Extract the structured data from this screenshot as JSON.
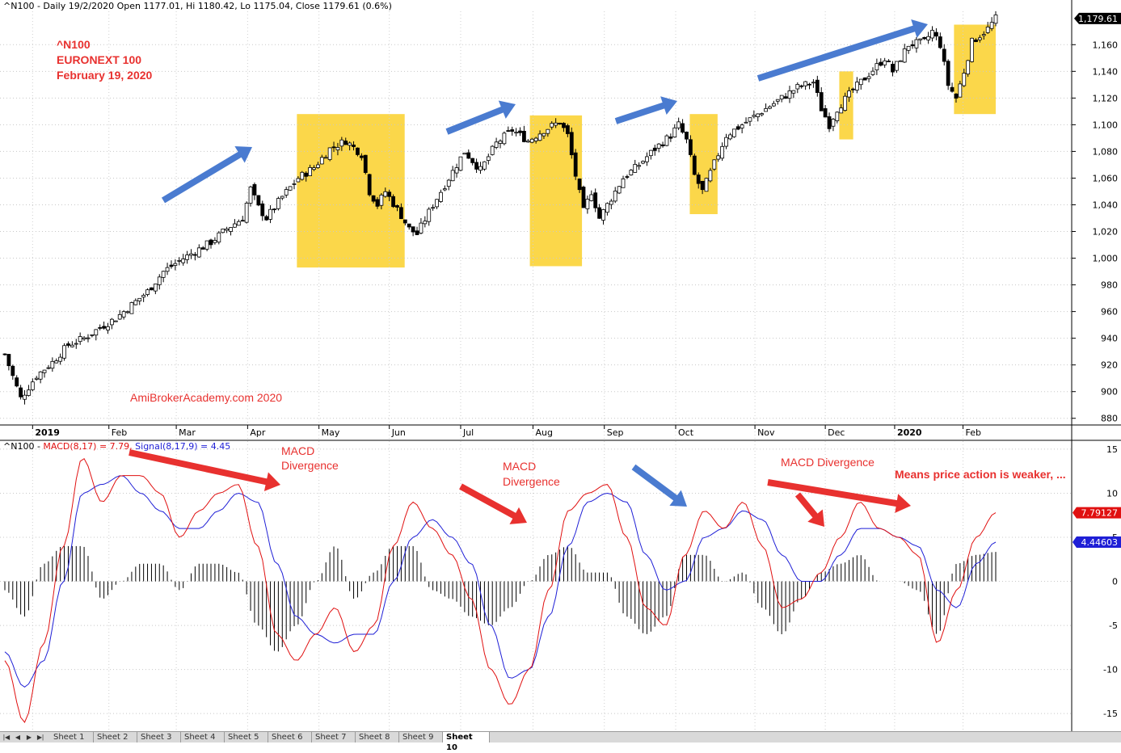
{
  "header": {
    "price_info": "^N100 - Daily 19/2/2020 Open 1177.01, Hi 1180.42, Lo 1175.04, Close 1179.61 (0.6%)",
    "macd_prefix": "^N100 - ",
    "macd_label": "MACD(8,17) = 7.79,",
    "signal_label": "Signal(8,17,9) = 4.45"
  },
  "annotations": {
    "ticker_line1": "^N100",
    "ticker_line2": "EURONEXT 100",
    "ticker_line3": "February 19, 2020",
    "watermark": "AmiBrokerAcademy.com   2020",
    "macd_div_1a": "MACD",
    "macd_div_1b": "Divergence",
    "macd_div_2a": "MACD",
    "macd_div_2b": "Divergence",
    "macd_div_3": "MACD Divergence",
    "note": "Means price action is weaker, ..."
  },
  "colors": {
    "accent_red": "#e8312f",
    "arrow_blue": "#4a7bd0",
    "highlight_yellow": "#fbd74a",
    "signal_blue": "#1f1fd6",
    "macd_red": "#e01010"
  },
  "tabs": [
    "Sheet 1",
    "Sheet 2",
    "Sheet 3",
    "Sheet 4",
    "Sheet 5",
    "Sheet 6",
    "Sheet 7",
    "Sheet 8",
    "Sheet 9",
    "Sheet 10"
  ],
  "active_tab": "Sheet 10",
  "chart_data": [
    {
      "type": "candlestick",
      "last_price_label": "1,179.61",
      "ylim": [
        875,
        1185
      ],
      "y_ticks": [
        "880",
        "900",
        "920",
        "940",
        "960",
        "980",
        "1,000",
        "1,020",
        "1,040",
        "1,060",
        "1,080",
        "1,100",
        "1,120",
        "1,140",
        "1,160"
      ],
      "x_ticks": [
        "2019",
        "Feb",
        "Mar",
        "Apr",
        "May",
        "Jun",
        "Jul",
        "Aug",
        "Sep",
        "Oct",
        "Nov",
        "Dec",
        "2020",
        "Feb"
      ],
      "close_path": [
        [
          0,
          928
        ],
        [
          4,
          895
        ],
        [
          8,
          912
        ],
        [
          12,
          922
        ],
        [
          16,
          935
        ],
        [
          20,
          940
        ],
        [
          24,
          948
        ],
        [
          28,
          955
        ],
        [
          32,
          965
        ],
        [
          36,
          975
        ],
        [
          40,
          990
        ],
        [
          44,
          998
        ],
        [
          48,
          1005
        ],
        [
          52,
          1012
        ],
        [
          56,
          1022
        ],
        [
          60,
          1030
        ],
        [
          62,
          1052
        ],
        [
          64,
          1038
        ],
        [
          66,
          1030
        ],
        [
          70,
          1046
        ],
        [
          74,
          1060
        ],
        [
          78,
          1068
        ],
        [
          82,
          1082
        ],
        [
          86,
          1088
        ],
        [
          90,
          1078
        ],
        [
          92,
          1050
        ],
        [
          94,
          1040
        ],
        [
          96,
          1050
        ],
        [
          100,
          1032
        ],
        [
          102,
          1022
        ],
        [
          104,
          1018
        ],
        [
          108,
          1040
        ],
        [
          112,
          1060
        ],
        [
          116,
          1080
        ],
        [
          120,
          1066
        ],
        [
          124,
          1086
        ],
        [
          128,
          1096
        ],
        [
          132,
          1088
        ],
        [
          136,
          1096
        ],
        [
          140,
          1102
        ],
        [
          142,
          1092
        ],
        [
          144,
          1062
        ],
        [
          146,
          1035
        ],
        [
          148,
          1050
        ],
        [
          150,
          1030
        ],
        [
          152,
          1040
        ],
        [
          156,
          1060
        ],
        [
          160,
          1070
        ],
        [
          164,
          1082
        ],
        [
          168,
          1092
        ],
        [
          170,
          1100
        ],
        [
          172,
          1088
        ],
        [
          174,
          1062
        ],
        [
          176,
          1050
        ],
        [
          178,
          1064
        ],
        [
          182,
          1092
        ],
        [
          186,
          1100
        ],
        [
          190,
          1108
        ],
        [
          192,
          1112
        ],
        [
          196,
          1120
        ],
        [
          200,
          1128
        ],
        [
          204,
          1132
        ],
        [
          206,
          1112
        ],
        [
          208,
          1100
        ],
        [
          210,
          1112
        ],
        [
          214,
          1126
        ],
        [
          218,
          1138
        ],
        [
          222,
          1150
        ],
        [
          224,
          1140
        ],
        [
          228,
          1160
        ],
        [
          232,
          1162
        ],
        [
          234,
          1170
        ],
        [
          236,
          1160
        ],
        [
          238,
          1130
        ],
        [
          240,
          1120
        ],
        [
          242,
          1140
        ],
        [
          244,
          1162
        ],
        [
          248,
          1172
        ],
        [
          250,
          1179.61
        ]
      ],
      "n_bars": 251,
      "highlight_regions": [
        {
          "x0": 84,
          "x1": 115,
          "y0": 993,
          "y1": 1108
        },
        {
          "x0": 151,
          "x1": 166,
          "y0": 994,
          "y1": 1107
        },
        {
          "x0": 197,
          "x1": 205,
          "y0": 1033,
          "y1": 1108
        },
        {
          "x0": 240,
          "x1": 244,
          "y0": 1089,
          "y1": 1140
        },
        {
          "x0": 273,
          "x1": 285,
          "y0": 1108,
          "y1": 1175
        }
      ]
    },
    {
      "type": "line",
      "ylim": [
        -17,
        16
      ],
      "y_ticks": [
        "15",
        "10",
        "5",
        "0",
        "-5",
        "-10",
        "-15"
      ],
      "macd_last_label": "7.79127",
      "signal_last_label": "4.44603",
      "series": [
        {
          "name": "MACD(8,17)",
          "values": [
            -9,
            -16,
            -7,
            4,
            14,
            9,
            12,
            12,
            10,
            5,
            8,
            10,
            11,
            4,
            -6,
            -9,
            -6,
            -3,
            -8,
            -5,
            4,
            9,
            6,
            3,
            -2,
            -10,
            -14,
            -10,
            -1,
            8,
            10,
            11,
            5,
            -3,
            -5,
            3,
            8,
            6,
            9,
            4,
            -3,
            -2,
            1,
            5,
            9,
            6,
            5,
            3,
            -7,
            -1,
            5,
            7.79
          ]
        },
        {
          "name": "Signal(8,17,9)",
          "values": [
            -8,
            -12,
            -9,
            0,
            10,
            11,
            12,
            10,
            8,
            6,
            6,
            8,
            10,
            9,
            2,
            -4,
            -6,
            -7,
            -6,
            -6,
            0,
            5,
            7,
            5,
            2,
            -5,
            -11,
            -10,
            -4,
            4,
            9,
            10,
            9,
            3,
            -1,
            0,
            5,
            6,
            8,
            7,
            3,
            0,
            0,
            3,
            6,
            6,
            5,
            4,
            -1,
            -3,
            2,
            4.45
          ]
        }
      ],
      "histogram": "macd_minus_signal"
    }
  ]
}
